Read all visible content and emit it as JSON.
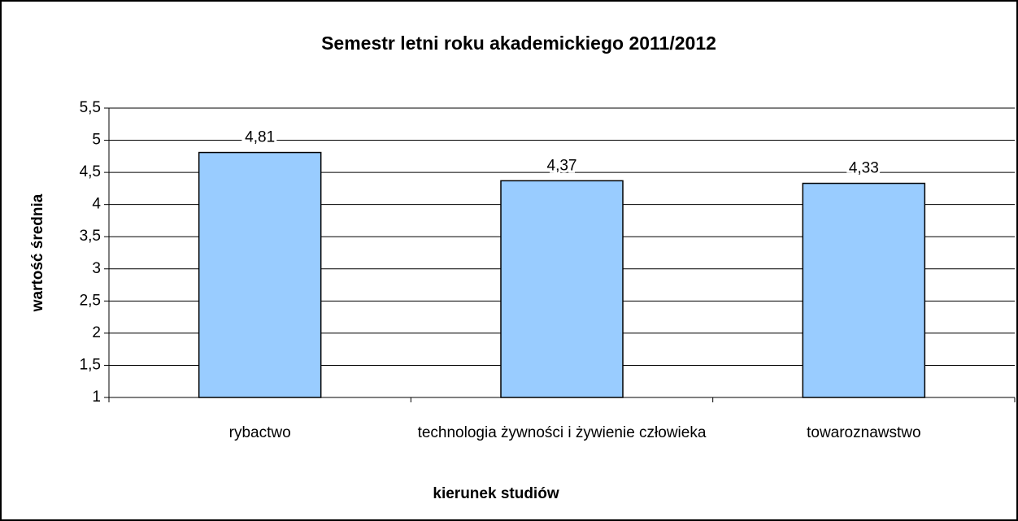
{
  "chart_data": {
    "type": "bar",
    "title": "Semestr letni roku akademickiego 2011/2012",
    "x_label": "kierunek studiów",
    "y_label": "wartość średnia",
    "categories": [
      "rybactwo",
      "technologia żywności i żywienie człowieka",
      "towaroznawstwo"
    ],
    "values": [
      4.81,
      4.37,
      4.33
    ],
    "value_labels": [
      "4,81",
      "4,37",
      "4,33"
    ],
    "color": "#99ccff",
    "ylim": [
      1,
      5.5
    ],
    "yticks": [
      1,
      {
        "value": 1.5,
        "label": "1,5"
      },
      2,
      {
        "value": 2.5,
        "label": "2,5"
      },
      3,
      {
        "value": 3.5,
        "label": "3,5"
      },
      4,
      {
        "value": 4.5,
        "label": "4,5"
      },
      5,
      {
        "value": 5.5,
        "label": "5,5"
      }
    ],
    "grid": true
  }
}
